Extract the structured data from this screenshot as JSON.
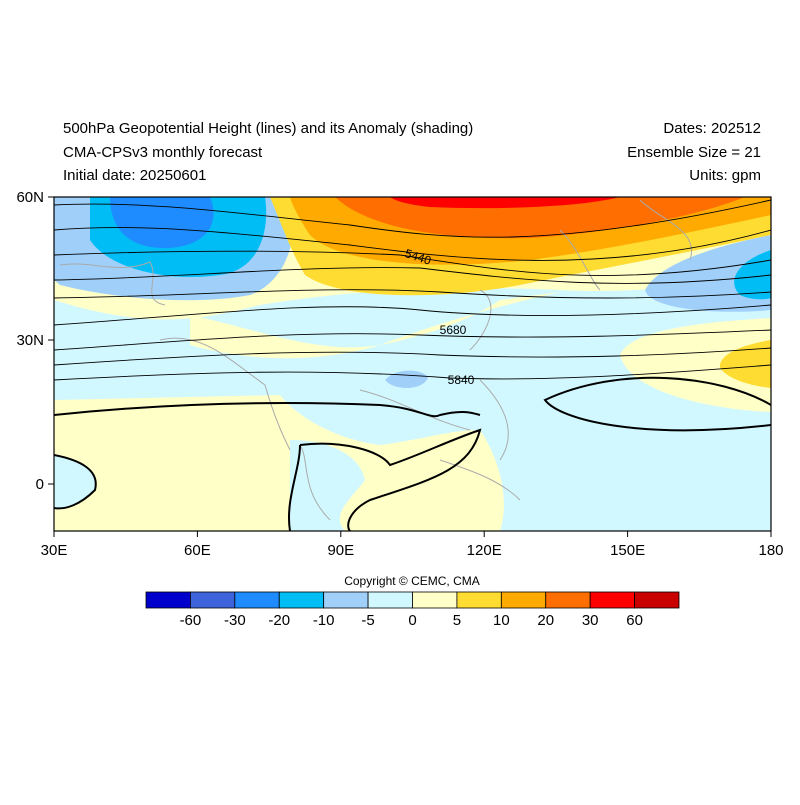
{
  "header": {
    "title": "500hPa Geopotential Height (lines) and its Anomaly (shading)",
    "model": "CMA-CPSv3 monthly forecast",
    "initial_date": "Initial date: 20250601",
    "dates": "Dates: 202512",
    "ensemble_size": "Ensemble Size = 21",
    "units": "Units: gpm"
  },
  "map": {
    "lat_labels": [
      "60N",
      "30N",
      "0"
    ],
    "lon_labels": [
      "30E",
      "60E",
      "90E",
      "120E",
      "150E",
      "180"
    ],
    "contour_labels": [
      "5440",
      "5680",
      "5840"
    ]
  },
  "copyright": "Copyright © CEMC, CMA",
  "colorbar": {
    "labels": [
      "-60",
      "-30",
      "-20",
      "-10",
      "-5",
      "0",
      "5",
      "10",
      "20",
      "30",
      "60"
    ],
    "colors": [
      "#0000cd",
      "#3e64dc",
      "#1e8cff",
      "#00bef5",
      "#a0d0fa",
      "#d2f8ff",
      "#ffffc8",
      "#ffdc32",
      "#ffaa00",
      "#ff6e00",
      "#ff0000",
      "#c80000"
    ]
  }
}
